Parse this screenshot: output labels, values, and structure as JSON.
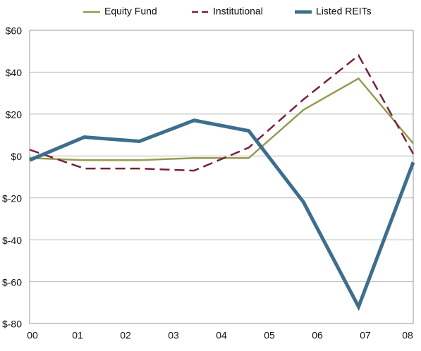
{
  "chart_data": {
    "type": "line",
    "xlim": [
      0,
      8
    ],
    "xticks": [
      {
        "value": 0,
        "label": "00"
      },
      {
        "value": 1,
        "label": "01"
      },
      {
        "value": 2,
        "label": "02"
      },
      {
        "value": 3,
        "label": "03"
      },
      {
        "value": 4,
        "label": "04"
      },
      {
        "value": 5,
        "label": "05"
      },
      {
        "value": 6,
        "label": "06"
      },
      {
        "value": 7,
        "label": "07"
      },
      {
        "value": 8,
        "label": "08"
      }
    ],
    "x": [
      0,
      1.14,
      2.29,
      3.43,
      4.57,
      5.71,
      6.86,
      8
    ],
    "ylim": [
      -80,
      60
    ],
    "yticks": [
      {
        "value": 60,
        "label": "$60"
      },
      {
        "value": 40,
        "label": "$40"
      },
      {
        "value": 20,
        "label": "$20"
      },
      {
        "value": 0,
        "label": "$0"
      },
      {
        "value": -20,
        "label": "$-20"
      },
      {
        "value": -40,
        "label": "$-40"
      },
      {
        "value": -60,
        "label": "$-60"
      },
      {
        "value": -80,
        "label": "$-80"
      }
    ],
    "grid": true,
    "legend": "top",
    "series": [
      {
        "name": "Equity Fund",
        "color": "#9a9a50",
        "style": "solid",
        "width": 2.5,
        "values": [
          -1,
          -2,
          -2,
          -1,
          -1,
          22,
          37,
          6
        ]
      },
      {
        "name": "Institutional",
        "color": "#7a1f3f",
        "style": "dashed",
        "width": 2.5,
        "values": [
          3,
          -6,
          -6,
          -7,
          4,
          27,
          48,
          1
        ]
      },
      {
        "name": "Listed REITs",
        "color": "#3e6e8e",
        "style": "solid",
        "width": 5,
        "values": [
          -2,
          9,
          7,
          17,
          12,
          -22,
          -72,
          -3
        ]
      }
    ]
  }
}
